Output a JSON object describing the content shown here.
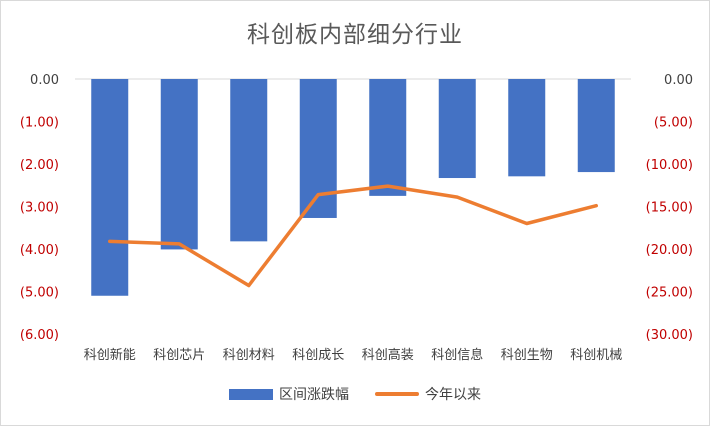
{
  "chart_data": {
    "type": "bar",
    "title": "科创板内部细分行业",
    "categories": [
      "科创新能",
      "科创芯片",
      "科创材料",
      "科创成长",
      "科创高装",
      "科创信息",
      "科创生物",
      "科创机械"
    ],
    "series": [
      {
        "name": "区间涨跌幅",
        "type": "bar",
        "axis": "left",
        "color": "#4472C4",
        "values": [
          -5.1,
          -4.01,
          -3.82,
          -3.27,
          -2.75,
          -2.33,
          -2.29,
          -2.19
        ]
      },
      {
        "name": "今年以来",
        "type": "line",
        "axis": "right",
        "color": "#ED7D31",
        "values": [
          -19.1,
          -19.4,
          -24.3,
          -13.6,
          -12.6,
          -13.9,
          -17.0,
          -14.9
        ]
      }
    ],
    "y_left": {
      "ylim": [
        -6,
        0
      ],
      "ticks": [
        "0.00",
        "(1.00)",
        "(2.00)",
        "(3.00)",
        "(4.00)",
        "(5.00)",
        "(6.00)"
      ],
      "tick_color_zero": "#404040",
      "tick_color_neg": "#C00000"
    },
    "y_right": {
      "ylim": [
        -30,
        0
      ],
      "ticks": [
        "0.00",
        "(5.00)",
        "(10.00)",
        "(15.00)",
        "(20.00)",
        "(25.00)",
        "(30.00)"
      ]
    },
    "grid": false,
    "legend_position": "bottom"
  }
}
